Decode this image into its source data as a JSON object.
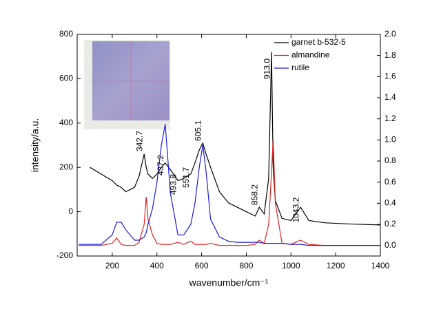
{
  "chart_data": {
    "type": "line",
    "x_label": "wavenumber/cm⁻¹",
    "y_label": "intensity/a.u.",
    "x": [
      50,
      100,
      150,
      200,
      220,
      240,
      260,
      300,
      320,
      342.7,
      352,
      360,
      380,
      400,
      420,
      437.2,
      460,
      493.8,
      520,
      551.7,
      570,
      590,
      605.1,
      620,
      640,
      680,
      720,
      760,
      800,
      840,
      858.2,
      880,
      900,
      913,
      920,
      930,
      960,
      1000,
      1043.2,
      1080,
      1150,
      1250,
      1400
    ],
    "series": [
      {
        "name": "garnet b-532-5",
        "color": "#000000",
        "axis": "y",
        "values": [
          null,
          200,
          170,
          140,
          120,
          110,
          90,
          110,
          160,
          260,
          200,
          170,
          150,
          170,
          200,
          220,
          190,
          140,
          150,
          170,
          220,
          280,
          310,
          260,
          200,
          90,
          40,
          20,
          0,
          -20,
          20,
          -10,
          150,
          720,
          200,
          50,
          -30,
          -40,
          20,
          -40,
          -50,
          -55,
          -60
        ]
      },
      {
        "name": "almandine",
        "color": "#e02020",
        "axis": "y2",
        "values": [
          0,
          0,
          0,
          0.02,
          0.07,
          0.01,
          0,
          0,
          0.03,
          0.2,
          0.46,
          0.25,
          0.1,
          0.02,
          0.01,
          0.01,
          0.01,
          0.03,
          0.01,
          0.04,
          0.01,
          0.01,
          0.01,
          0.01,
          0.02,
          0,
          0,
          0,
          0,
          0.01,
          0.05,
          0.02,
          0.2,
          0.7,
          1.0,
          0.4,
          0.02,
          0.01,
          0.05,
          0.01,
          0,
          0,
          0
        ]
      },
      {
        "name": "rutile",
        "color": "#1a1adc",
        "axis": "y2",
        "values": [
          0.01,
          0.01,
          0.01,
          0.1,
          0.22,
          0.22,
          0.15,
          0.05,
          0.05,
          0.08,
          0.12,
          0.2,
          0.35,
          0.6,
          0.95,
          1.15,
          0.5,
          0.1,
          0.1,
          0.2,
          0.4,
          0.75,
          0.95,
          0.7,
          0.25,
          0.08,
          0.04,
          0.03,
          0.03,
          0.03,
          0.03,
          0.02,
          0.02,
          0.02,
          0.02,
          0.02,
          0.02,
          0.01,
          0.01,
          0,
          0,
          0,
          0
        ]
      }
    ],
    "peak_labels": [
      {
        "x": 342.7,
        "label": "342.7"
      },
      {
        "x": 437.2,
        "label": "437.2"
      },
      {
        "x": 493.8,
        "label": "493.8"
      },
      {
        "x": 551.7,
        "label": "551.7"
      },
      {
        "x": 605.1,
        "label": "605.1"
      },
      {
        "x": 858.2,
        "label": "858.2"
      },
      {
        "x": 913,
        "label": "913.0"
      },
      {
        "x": 1043.2,
        "label": "1043.2"
      }
    ],
    "xlim": [
      43,
      1400
    ],
    "xticks": [
      200,
      400,
      600,
      800,
      1000,
      1200,
      1400
    ],
    "ylim": [
      -200,
      800
    ],
    "yticks": [
      -200,
      0,
      200,
      400,
      600,
      800
    ],
    "y2lim": [
      -0.1,
      2.0
    ],
    "y2ticks": [
      {
        "value": 0,
        "label": "0.0"
      },
      0.2,
      0.4,
      0.6,
      0.8,
      {
        "value": 1,
        "label": "1.0"
      },
      1.2,
      1.4,
      1.6,
      1.8,
      {
        "value": 2,
        "label": "2.0"
      }
    ],
    "grid": false,
    "legend": "top-right"
  }
}
